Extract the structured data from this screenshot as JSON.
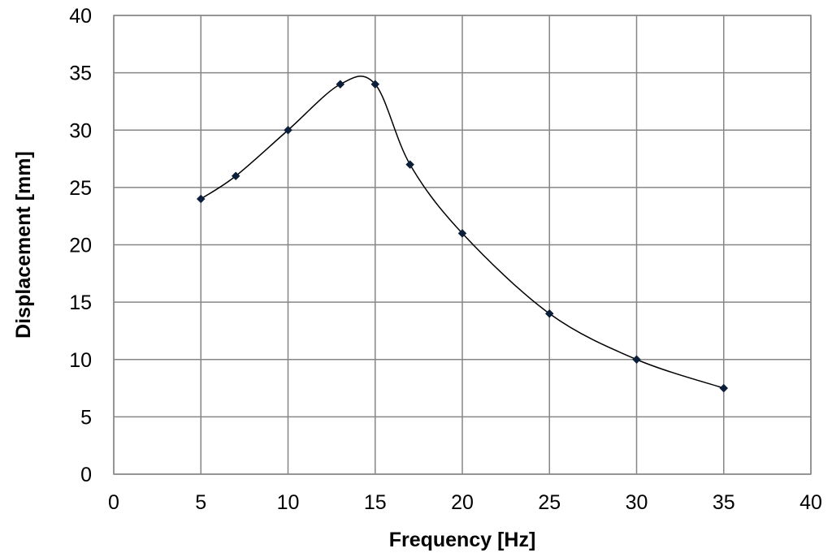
{
  "chart_data": {
    "type": "scatter",
    "title": "",
    "xlabel": "Frequency [Hz]",
    "ylabel": "Displacement [mm]",
    "xlim": [
      0,
      40
    ],
    "ylim": [
      0,
      40
    ],
    "x_ticks": [
      "0",
      "5",
      "10",
      "15",
      "20",
      "25",
      "30",
      "35",
      "40"
    ],
    "y_ticks": [
      "0",
      "5",
      "10",
      "15",
      "20",
      "25",
      "30",
      "35",
      "40"
    ],
    "grid": true,
    "legend": "none",
    "line_style": "smooth",
    "marker": "diamond",
    "series": [
      {
        "color": "#000000",
        "marker_color": "#0b1f3a",
        "x": [
          5,
          7,
          10,
          13,
          15,
          17,
          20,
          25,
          30,
          35
        ],
        "y": [
          24,
          26,
          30,
          34,
          34,
          27,
          21,
          14,
          10,
          7.5
        ]
      }
    ]
  }
}
